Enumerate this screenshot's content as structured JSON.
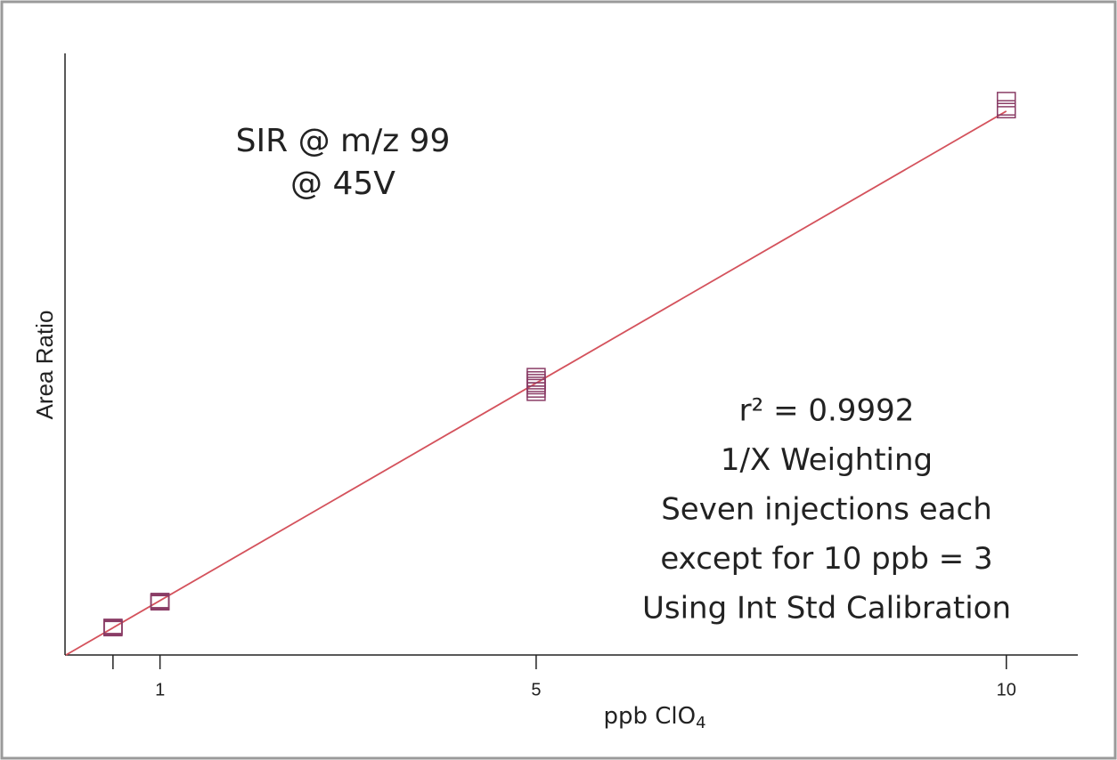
{
  "chart_data": {
    "type": "scatter",
    "x_label": "ppb ClO",
    "x_label_sub": "4",
    "y_label": "Area Ratio",
    "annotations": [
      "SIR @ m/z 99",
      "@ 45V"
    ],
    "notes": [
      "r² = 0.9992",
      "1/X Weighting",
      "Seven injections each",
      "except for 10 ppb = 3",
      "Using Int Std Calibration"
    ],
    "xlim": [
      -0.01,
      10.76
    ],
    "xticks": [
      1,
      5,
      10
    ],
    "minor_xticks": [
      0.5
    ],
    "ylim": [
      0,
      1.094
    ],
    "series": [
      {
        "color": "#8a3d66",
        "x": [
          0.5,
          0.5,
          0.5,
          0.5,
          0.5,
          0.5,
          0.5,
          1,
          1,
          1,
          1,
          1,
          1,
          1,
          5,
          5,
          5,
          5,
          5,
          5,
          5,
          10,
          10,
          10
        ],
        "values": [
          0.048,
          0.049,
          0.05,
          0.05,
          0.051,
          0.051,
          0.052,
          0.095,
          0.096,
          0.097,
          0.097,
          0.098,
          0.098,
          0.099,
          0.476,
          0.482,
          0.488,
          0.492,
          0.497,
          0.502,
          0.508,
          0.99,
          0.995,
          1.01
        ]
      }
    ],
    "fit": {
      "type": "line",
      "color": "#d4525c",
      "x": [
        0,
        10
      ],
      "values": [
        0,
        0.989
      ]
    }
  }
}
